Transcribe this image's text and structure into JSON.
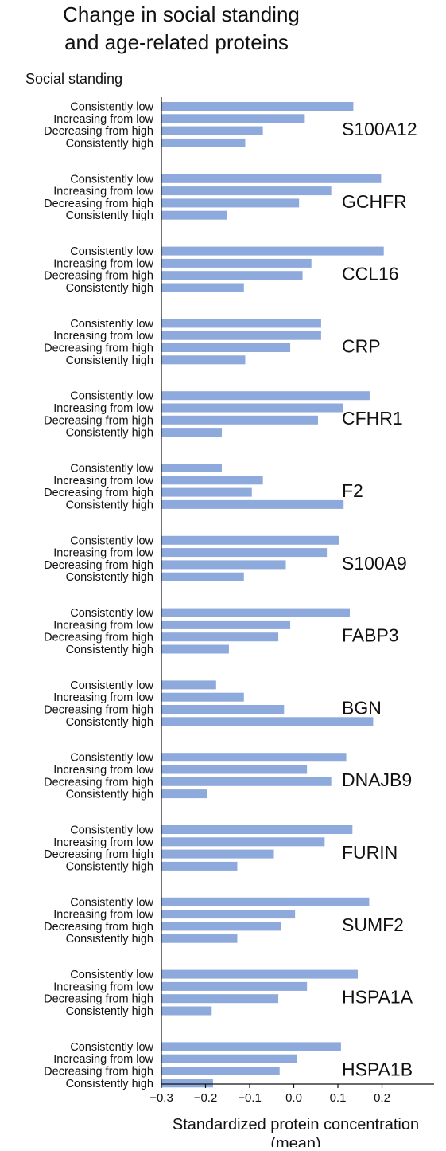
{
  "chart_data": {
    "type": "bar",
    "orientation": "horizontal",
    "title_lines": [
      "Change in social standing",
      "and age-related proteins"
    ],
    "group_axis_title": "Social standing",
    "xlabel_lines": [
      "Standardized protein concentration",
      "(mean)"
    ],
    "ylabel": "",
    "xlim": [
      -0.3,
      0.3
    ],
    "xticks": [
      "−0.3",
      "−0.2",
      "−0.1",
      "0.0",
      "0.1",
      "0.2"
    ],
    "xtick_values": [
      -0.3,
      -0.2,
      -0.1,
      0.0,
      0.1,
      0.2
    ],
    "bar_color": "#8ea9dc",
    "grid": false,
    "categories": [
      "Consistently low",
      "Increasing from low",
      "Decreasing from high",
      "Consistently high"
    ],
    "groups": [
      {
        "protein": "S100A12",
        "values": [
          0.135,
          0.025,
          -0.07,
          -0.11
        ]
      },
      {
        "protein": "GCHFR",
        "values": [
          0.198,
          0.085,
          0.012,
          -0.152
        ]
      },
      {
        "protein": "CCL16",
        "values": [
          0.204,
          0.04,
          0.02,
          -0.113
        ]
      },
      {
        "protein": "CRP",
        "values": [
          0.062,
          0.062,
          -0.008,
          -0.11
        ]
      },
      {
        "protein": "CFHR1",
        "values": [
          0.172,
          0.112,
          0.055,
          -0.163
        ]
      },
      {
        "protein": "F2",
        "values": [
          -0.163,
          -0.07,
          -0.095,
          0.113
        ]
      },
      {
        "protein": "S100A9",
        "values": [
          0.102,
          0.075,
          -0.018,
          -0.113
        ]
      },
      {
        "protein": "FABP3",
        "values": [
          0.127,
          -0.008,
          -0.035,
          -0.147
        ]
      },
      {
        "protein": "BGN",
        "values": [
          -0.176,
          -0.113,
          -0.022,
          0.18
        ]
      },
      {
        "protein": "DNAJB9",
        "values": [
          0.119,
          0.03,
          0.085,
          -0.197
        ]
      },
      {
        "protein": "FURIN",
        "values": [
          0.133,
          0.07,
          -0.045,
          -0.128
        ]
      },
      {
        "protein": "SUMF2",
        "values": [
          0.171,
          0.003,
          -0.028,
          -0.128
        ]
      },
      {
        "protein": "HSPA1A",
        "values": [
          0.145,
          0.03,
          -0.035,
          -0.186
        ]
      },
      {
        "protein": "HSPA1B",
        "values": [
          0.107,
          0.008,
          -0.032,
          -0.183
        ]
      }
    ]
  }
}
